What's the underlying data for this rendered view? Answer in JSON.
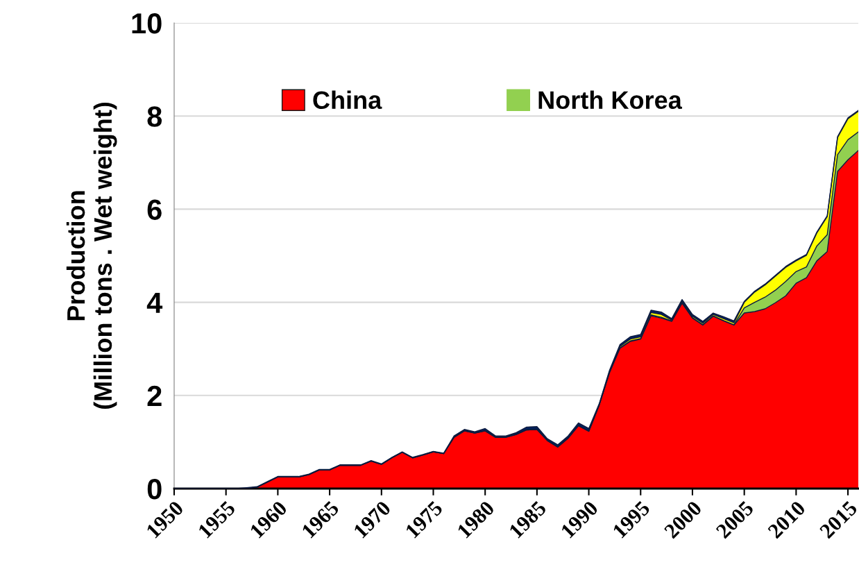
{
  "chart_data": {
    "type": "area",
    "stacked": true,
    "ylabel": "Production\n(Million tons . Wet weight)",
    "x": [
      1950,
      1951,
      1952,
      1953,
      1954,
      1955,
      1956,
      1957,
      1958,
      1959,
      1960,
      1961,
      1962,
      1963,
      1964,
      1965,
      1966,
      1967,
      1968,
      1969,
      1970,
      1971,
      1972,
      1973,
      1974,
      1975,
      1976,
      1977,
      1978,
      1979,
      1980,
      1981,
      1982,
      1983,
      1984,
      1985,
      1986,
      1987,
      1988,
      1989,
      1990,
      1991,
      1992,
      1993,
      1994,
      1995,
      1996,
      1997,
      1998,
      1999,
      2000,
      2001,
      2002,
      2003,
      2004,
      2005,
      2006,
      2007,
      2008,
      2009,
      2010,
      2011,
      2012,
      2013,
      2014,
      2015,
      2016
    ],
    "series": [
      {
        "name": "China",
        "color": "#ff0000",
        "values": [
          0,
          0,
          0,
          0,
          0,
          0,
          0,
          0.01,
          0.03,
          0.14,
          0.25,
          0.25,
          0.25,
          0.3,
          0.4,
          0.4,
          0.5,
          0.5,
          0.5,
          0.59,
          0.52,
          0.66,
          0.78,
          0.66,
          0.72,
          0.79,
          0.75,
          1.1,
          1.24,
          1.19,
          1.24,
          1.1,
          1.1,
          1.16,
          1.26,
          1.27,
          1.03,
          0.89,
          1.08,
          1.35,
          1.23,
          1.79,
          2.49,
          3.01,
          3.16,
          3.21,
          3.71,
          3.66,
          3.59,
          3.98,
          3.66,
          3.51,
          3.7,
          3.6,
          3.51,
          3.77,
          3.8,
          3.86,
          3.99,
          4.14,
          4.41,
          4.53,
          4.89,
          5.09,
          6.81,
          7.06,
          7.26
        ]
      },
      {
        "name": "North Korea",
        "color": "#92d050",
        "values": [
          0,
          0,
          0,
          0,
          0,
          0,
          0,
          0,
          0,
          0,
          0,
          0,
          0,
          0,
          0,
          0,
          0,
          0,
          0,
          0,
          0,
          0,
          0,
          0,
          0,
          0,
          0,
          0,
          0,
          0,
          0,
          0,
          0,
          0,
          0,
          0,
          0,
          0,
          0,
          0,
          0,
          0,
          0.01,
          0.01,
          0.01,
          0.01,
          0.02,
          0.02,
          0.01,
          0.01,
          0.01,
          0.01,
          0.01,
          0.01,
          0.01,
          0.11,
          0.2,
          0.25,
          0.27,
          0.31,
          0.25,
          0.23,
          0.32,
          0.36,
          0.36,
          0.43,
          0.4
        ]
      },
      {
        "color": "#ffff00",
        "values": [
          0,
          0,
          0,
          0,
          0,
          0,
          0,
          0,
          0,
          0,
          0,
          0,
          0,
          0,
          0,
          0,
          0,
          0,
          0,
          0,
          0,
          0,
          0,
          0,
          0,
          0,
          0,
          0.01,
          0.01,
          0.01,
          0.01,
          0.01,
          0.01,
          0.01,
          0.01,
          0.01,
          0.01,
          0.01,
          0.01,
          0.01,
          0.01,
          0.01,
          0.01,
          0.03,
          0.04,
          0.04,
          0.05,
          0.06,
          0.02,
          0.03,
          0.03,
          0.03,
          0.03,
          0.04,
          0.04,
          0.12,
          0.22,
          0.26,
          0.3,
          0.3,
          0.23,
          0.25,
          0.28,
          0.39,
          0.37,
          0.45,
          0.44
        ]
      },
      {
        "color": "#002060",
        "values": [
          0,
          0,
          0,
          0,
          0,
          0,
          0,
          0.01,
          0.01,
          0.01,
          0.01,
          0.01,
          0.01,
          0.01,
          0.01,
          0.01,
          0.01,
          0.01,
          0.01,
          0.01,
          0.01,
          0.01,
          0.01,
          0.01,
          0.01,
          0.01,
          0.01,
          0.02,
          0.02,
          0.02,
          0.04,
          0.02,
          0.02,
          0.03,
          0.05,
          0.05,
          0.03,
          0.04,
          0.04,
          0.05,
          0.05,
          0.02,
          0.03,
          0.04,
          0.05,
          0.05,
          0.05,
          0.05,
          0.03,
          0.04,
          0.04,
          0.04,
          0.03,
          0.04,
          0.04,
          0.02,
          0.02,
          0.02,
          0.02,
          0.02,
          0.02,
          0.02,
          0.02,
          0.02,
          0.02,
          0.02,
          0.02
        ]
      }
    ],
    "xlim": [
      1950,
      2016
    ],
    "xticks": [
      1950,
      1955,
      1960,
      1965,
      1970,
      1975,
      1980,
      1985,
      1990,
      1995,
      2000,
      2005,
      2010,
      2015
    ],
    "ylim": [
      0,
      10
    ],
    "yticks": [
      0,
      2,
      4,
      6,
      8,
      10
    ],
    "grid": "y",
    "legend": "top"
  }
}
